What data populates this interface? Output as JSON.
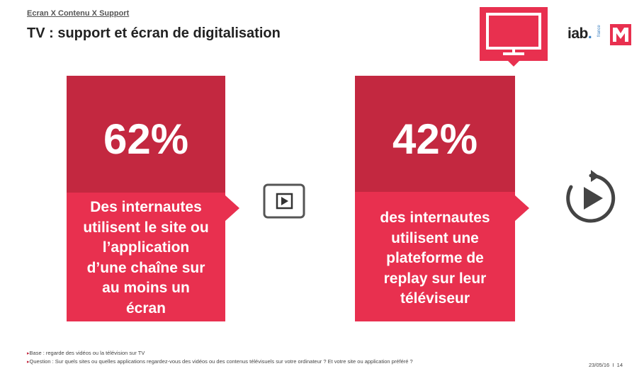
{
  "header": {
    "breadcrumb": "Ecran X Contenu X Support",
    "title": "TV : support et écran de digitalisation"
  },
  "logos": {
    "iab_text": "iab",
    "iab_dot": ".",
    "iab_sub": "france",
    "m_letter": "M",
    "tv_icon": "tv-icon"
  },
  "cards": [
    {
      "percent": "62%",
      "description_lines": [
        "Des internautes",
        "utilisent le site ou",
        "l’application",
        "d’une chaîne sur",
        "au moins un",
        "écran"
      ]
    },
    {
      "percent": "42%",
      "description_lines": [
        "des internautes",
        "utilisent une",
        "plateforme de",
        "replay sur leur",
        "téléviseur"
      ]
    }
  ],
  "icons": {
    "play": "play-icon",
    "replay": "replay-icon"
  },
  "footer": {
    "base": "Base : regarde des vidéos ou la télévision sur TV",
    "question": "Question : Sur quels sites ou quelles applications regardez-vous des vidéos ou des contenus télévisuels sur votre ordinateur ? Et votre site ou application préféré ?",
    "date": "23/05/16",
    "separator": "I",
    "page": "14"
  },
  "colors": {
    "accent": "#e8304f",
    "accent_dark": "#c32840",
    "icon_gray": "#444444"
  }
}
